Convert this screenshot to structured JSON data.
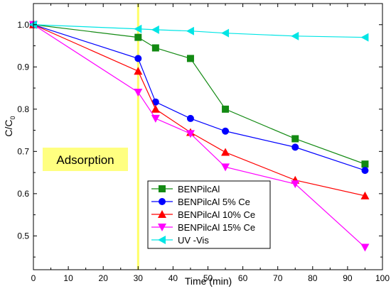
{
  "chart_data": {
    "type": "line",
    "xlabel": "Time (min)",
    "ylabel_main": "C/C",
    "ylabel_sub": "0",
    "xlim": [
      0,
      100
    ],
    "ylim": [
      0.42,
      1.05
    ],
    "xticks": [
      0,
      10,
      20,
      30,
      40,
      50,
      60,
      70,
      80,
      90,
      100
    ],
    "yticks": [
      0.5,
      0.6,
      0.7,
      0.8,
      0.9,
      1.0
    ],
    "ytick_labels": [
      "0.5",
      "0.6",
      "0.7",
      "0.8",
      "0.9",
      "1.0"
    ],
    "grid": false,
    "legend_position": "lower-center",
    "annotation": {
      "label": "Adsorption",
      "vertical_line_x": 30,
      "line_color": "#ffff66",
      "box_color": "#ffff80"
    },
    "series": [
      {
        "name": "BENPilcAl",
        "color": "#138a13",
        "marker": "square",
        "x": [
          0,
          30,
          35,
          45,
          55,
          75,
          95
        ],
        "y": [
          1.0,
          0.97,
          0.945,
          0.92,
          0.8,
          0.73,
          0.67
        ]
      },
      {
        "name": "BENPilcAl 5% Ce",
        "color": "#0000ff",
        "marker": "circle",
        "x": [
          0,
          30,
          35,
          45,
          55,
          75,
          95
        ],
        "y": [
          1.0,
          0.92,
          0.817,
          0.778,
          0.748,
          0.71,
          0.655
        ]
      },
      {
        "name": "BENPilcAl 10% Ce",
        "color": "#ff0000",
        "marker": "triangle-up",
        "x": [
          0,
          30,
          35,
          45,
          55,
          75,
          95
        ],
        "y": [
          1.0,
          0.89,
          0.8,
          0.745,
          0.698,
          0.632,
          0.595
        ]
      },
      {
        "name": "BENPilcAl 15% Ce",
        "color": "#ff00ff",
        "marker": "triangle-down",
        "x": [
          0,
          30,
          35,
          45,
          55,
          75,
          95
        ],
        "y": [
          1.0,
          0.84,
          0.778,
          0.742,
          0.663,
          0.623,
          0.473
        ]
      },
      {
        "name": "UV -Vis",
        "color": "#00e5e5",
        "marker": "triangle-left",
        "x": [
          0,
          30,
          35,
          45,
          55,
          75,
          95
        ],
        "y": [
          1.0,
          0.99,
          0.988,
          0.985,
          0.98,
          0.973,
          0.97
        ]
      }
    ]
  }
}
